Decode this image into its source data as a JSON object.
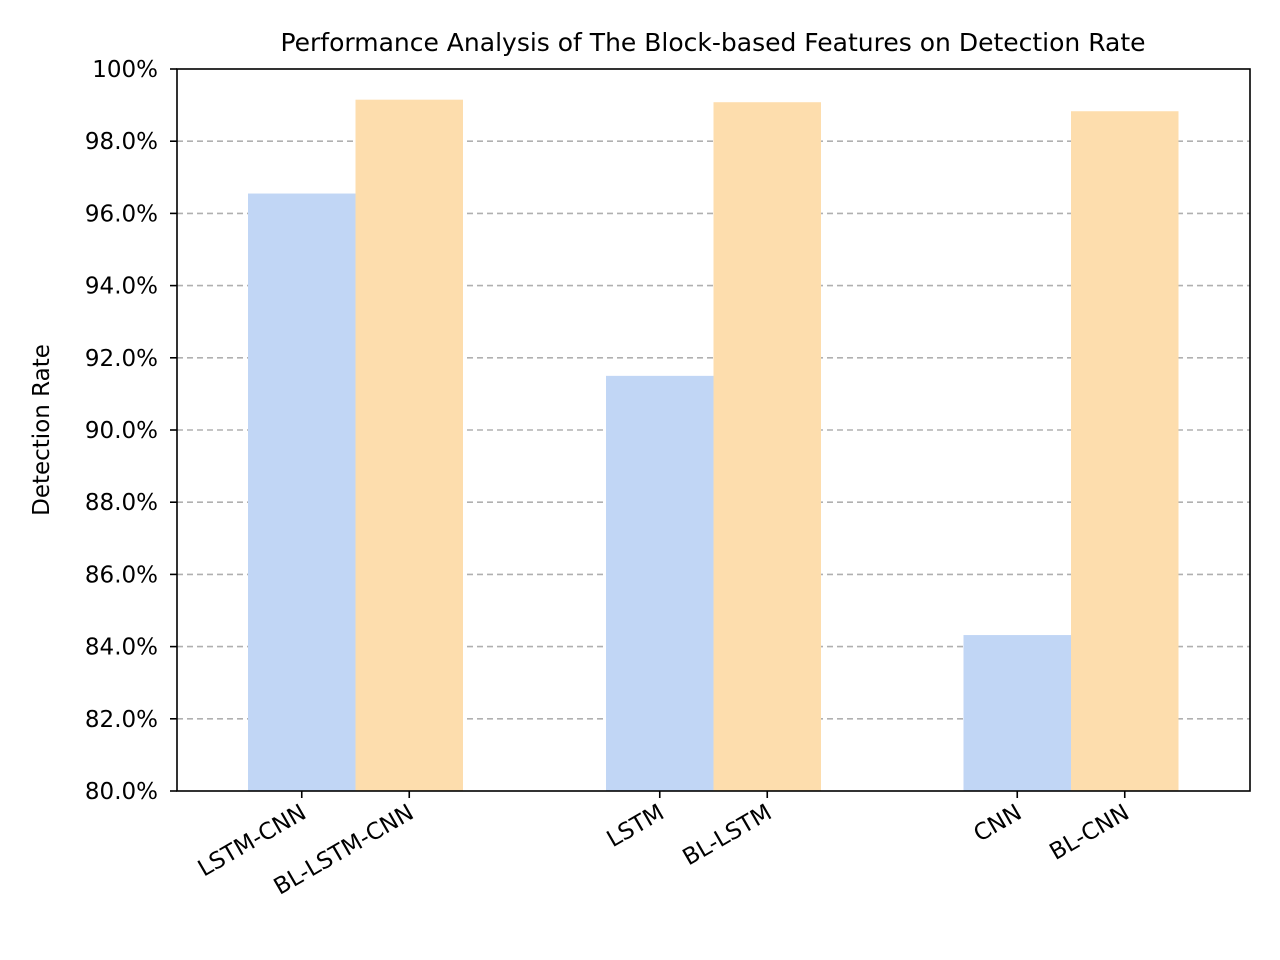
{
  "chart_data": {
    "type": "bar",
    "title": "Performance Analysis of The Block-based Features on Detection Rate",
    "ylabel": "Detection Rate",
    "ylim": [
      80.0,
      100.0
    ],
    "yticks": [
      80.0,
      82.0,
      84.0,
      86.0,
      88.0,
      90.0,
      92.0,
      94.0,
      96.0,
      98.0,
      100.0
    ],
    "ytick_labels": [
      "80.0%",
      "82.0%",
      "84.0%",
      "86.0%",
      "88.0%",
      "90.0%",
      "92.0%",
      "94.0%",
      "96.0%",
      "98.0%",
      "100%"
    ],
    "grid": "y-dashed",
    "groups": [
      {
        "bars": [
          {
            "label": "LSTM-CNN",
            "value": 96.55,
            "color": "#c1d6f5"
          },
          {
            "label": "BL-LSTM-CNN",
            "value": 99.15,
            "color": "#fdddad"
          }
        ]
      },
      {
        "bars": [
          {
            "label": "LSTM",
            "value": 91.5,
            "color": "#c1d6f5"
          },
          {
            "label": "BL-LSTM",
            "value": 99.08,
            "color": "#fdddad"
          }
        ]
      },
      {
        "bars": [
          {
            "label": "CNN",
            "value": 84.32,
            "color": "#c1d6f5"
          },
          {
            "label": "BL-CNN",
            "value": 98.83,
            "color": "#fdddad"
          }
        ]
      }
    ]
  }
}
